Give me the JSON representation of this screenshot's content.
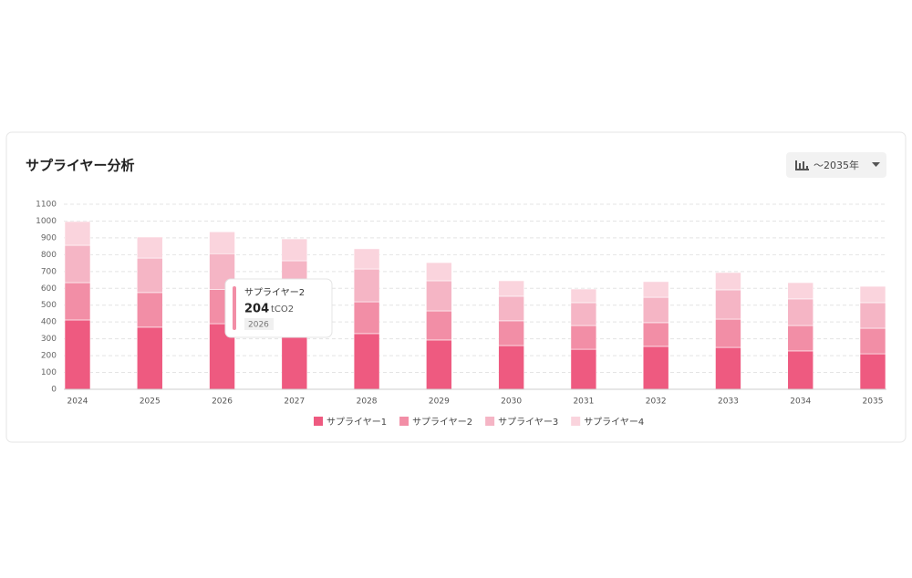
{
  "range_selector": "〜2035年",
  "chart_data": {
    "type": "bar",
    "stacked": true,
    "title": "サプライヤー分析",
    "categories": [
      "2024",
      "2025",
      "2026",
      "2027",
      "2028",
      "2029",
      "2030",
      "2031",
      "2032",
      "2033",
      "2034",
      "2035"
    ],
    "series": [
      {
        "name": "サプライヤー1",
        "color": "#ee5a80",
        "values": [
          412,
          369,
          390,
          330,
          331,
          293,
          260,
          238,
          255,
          249,
          228,
          211
        ]
      },
      {
        "name": "サプライヤー2",
        "color": "#f28ea6",
        "values": [
          222,
          206,
          204,
          220,
          189,
          173,
          147,
          141,
          141,
          168,
          151,
          152
        ]
      },
      {
        "name": "サプライヤー3",
        "color": "#f5b5c5",
        "values": [
          222,
          205,
          212,
          214,
          195,
          179,
          146,
          136,
          151,
          174,
          158,
          152
        ]
      },
      {
        "name": "サプライヤー4",
        "color": "#fad4dd",
        "values": [
          141,
          125,
          130,
          130,
          120,
          108,
          92,
          81,
          93,
          103,
          97,
          97
        ]
      }
    ],
    "ylim": [
      0,
      1100
    ],
    "yticks": [
      0,
      100,
      200,
      300,
      400,
      500,
      600,
      700,
      800,
      900,
      1000,
      1100
    ],
    "grid": true,
    "tooltip_unit": "tCO2"
  }
}
